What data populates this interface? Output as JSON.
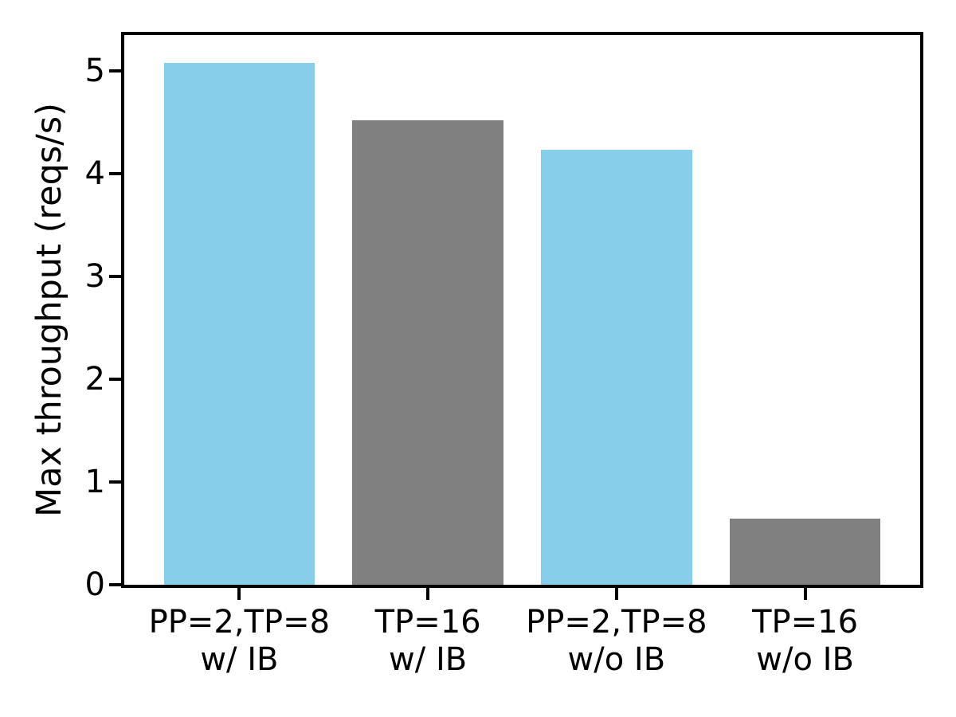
{
  "figure": {
    "background": "#ffffff",
    "axis_color": "#000000",
    "text_color": "#000000"
  },
  "chart_data": {
    "type": "bar",
    "title": "",
    "xlabel": "",
    "ylabel": "Max throughput (reqs/s)",
    "categories": [
      "PP=2,TP=8\nw/ IB",
      "TP=16\nw/ IB",
      "PP=2,TP=8\nw/o IB",
      "TP=16\nw/o IB"
    ],
    "values": [
      5.08,
      4.52,
      4.23,
      0.64
    ],
    "bar_colors": [
      "#87ceeb",
      "#808080",
      "#87ceeb",
      "#808080"
    ],
    "yticks": [
      0,
      1,
      2,
      3,
      4,
      5
    ],
    "ylim": [
      0,
      5.35
    ],
    "xlim": [
      -0.61,
      3.61
    ],
    "bar_width": 0.8,
    "grid": false,
    "legend_position": "none"
  }
}
